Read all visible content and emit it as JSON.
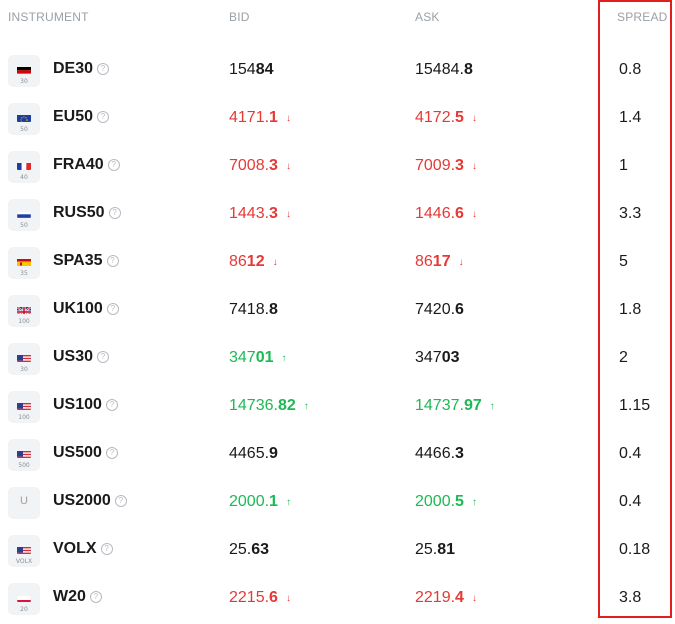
{
  "header": {
    "instrument": "INSTRUMENT",
    "bid": "BID",
    "ask": "ASK",
    "spread": "SPREAD"
  },
  "colors": {
    "down": "#e53935",
    "up": "#1db954",
    "neutral": "#1a1a1a",
    "highlight_box": "#e31c1c"
  },
  "rows": [
    {
      "name": "DE30",
      "sub": "30",
      "flag": "de",
      "bid_pre": "154",
      "bid_bold": "84",
      "ask_pre": "15484.",
      "ask_bold": "8",
      "spread": "0.8",
      "trend": "neutral",
      "arrow": ""
    },
    {
      "name": "EU50",
      "sub": "50",
      "flag": "eu",
      "bid_pre": "4171.",
      "bid_bold": "1",
      "ask_pre": "4172.",
      "ask_bold": "5",
      "spread": "1.4",
      "trend": "down",
      "arrow": "down-arrow-icon"
    },
    {
      "name": "FRA40",
      "sub": "40",
      "flag": "fr",
      "bid_pre": "7008.",
      "bid_bold": "3",
      "ask_pre": "7009.",
      "ask_bold": "3",
      "spread": "1",
      "trend": "down",
      "arrow": "down-arrow-icon"
    },
    {
      "name": "RUS50",
      "sub": "50",
      "flag": "ru",
      "bid_pre": "1443.",
      "bid_bold": "3",
      "ask_pre": "1446.",
      "ask_bold": "6",
      "spread": "3.3",
      "trend": "down",
      "arrow": "down-arrow-icon"
    },
    {
      "name": "SPA35",
      "sub": "35",
      "flag": "es",
      "bid_pre": "86",
      "bid_bold": "12",
      "ask_pre": "86",
      "ask_bold": "17",
      "spread": "5",
      "trend": "down",
      "arrow": "down-arrow-icon"
    },
    {
      "name": "UK100",
      "sub": "100",
      "flag": "uk",
      "bid_pre": "7418.",
      "bid_bold": "8",
      "ask_pre": "7420.",
      "ask_bold": "6",
      "spread": "1.8",
      "trend": "neutral",
      "arrow": ""
    },
    {
      "name": "US30",
      "sub": "30",
      "flag": "us",
      "bid_pre": "347",
      "bid_bold": "01",
      "ask_pre": "347",
      "ask_bold": "03",
      "spread": "2",
      "trend": "up",
      "arrow": "up-arrow-icon",
      "ask_trend": "neutral"
    },
    {
      "name": "US100",
      "sub": "100",
      "flag": "us",
      "bid_pre": "14736.",
      "bid_bold": "82",
      "ask_pre": "14737.",
      "ask_bold": "97",
      "spread": "1.15",
      "trend": "up",
      "arrow": "up-arrow-icon"
    },
    {
      "name": "US500",
      "sub": "500",
      "flag": "us",
      "bid_pre": "4465.",
      "bid_bold": "9",
      "ask_pre": "4466.",
      "ask_bold": "3",
      "spread": "0.4",
      "trend": "neutral",
      "arrow": ""
    },
    {
      "name": "US2000",
      "sub": "",
      "flag": "u",
      "bid_pre": "2000.",
      "bid_bold": "1",
      "ask_pre": "2000.",
      "ask_bold": "5",
      "spread": "0.4",
      "trend": "up",
      "arrow": "up-arrow-icon",
      "badge_letter": "U"
    },
    {
      "name": "VOLX",
      "sub": "VOLX",
      "flag": "us",
      "bid_pre": "25.",
      "bid_bold": "63",
      "ask_pre": "25.",
      "ask_bold": "81",
      "spread": "0.18",
      "trend": "neutral",
      "arrow": ""
    },
    {
      "name": "W20",
      "sub": "20",
      "flag": "pl",
      "bid_pre": "2215.",
      "bid_bold": "6",
      "ask_pre": "2219.",
      "ask_bold": "4",
      "spread": "3.8",
      "trend": "down",
      "arrow": "down-arrow-icon"
    }
  ]
}
